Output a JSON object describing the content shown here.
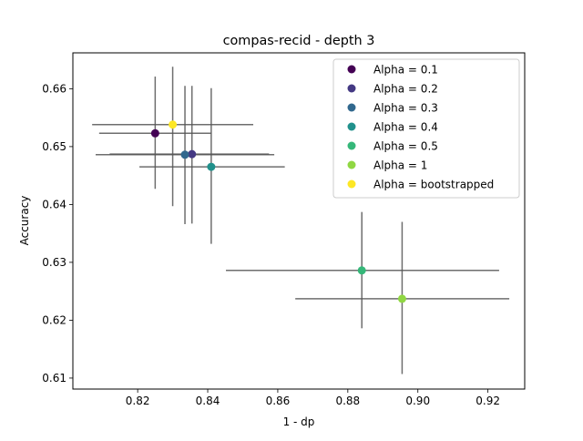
{
  "chart_data": {
    "type": "scatter",
    "title": "compas-recid - depth 3",
    "xlabel": "1 - dp",
    "ylabel": "Accuracy",
    "xlim": [
      0.8015,
      0.9305
    ],
    "ylim": [
      0.6081,
      0.6662
    ],
    "xticks": [
      0.82,
      0.84,
      0.86,
      0.88,
      0.9,
      0.92
    ],
    "xtick_labels": [
      "0.82",
      "0.84",
      "0.86",
      "0.88",
      "0.90",
      "0.92"
    ],
    "yticks": [
      0.61,
      0.62,
      0.63,
      0.64,
      0.65,
      0.66
    ],
    "ytick_labels": [
      "0.61",
      "0.62",
      "0.63",
      "0.64",
      "0.65",
      "0.66"
    ],
    "grid": false,
    "legend_position": "upper right",
    "error_bar_color": "#555555",
    "series": [
      {
        "name": "Alpha = 0.1",
        "color": "#440154",
        "x": 0.825,
        "y": 0.6523,
        "xerr": [
          0.809,
          0.841
        ],
        "yerr": [
          0.6427,
          0.6621
        ]
      },
      {
        "name": "Alpha = 0.2",
        "color": "#443983",
        "x": 0.8355,
        "y": 0.6487,
        "xerr": [
          0.812,
          0.8575
        ],
        "yerr": [
          0.6367,
          0.6605
        ]
      },
      {
        "name": "Alpha = 0.3",
        "color": "#31688e",
        "x": 0.8335,
        "y": 0.6486,
        "xerr": [
          0.808,
          0.859
        ],
        "yerr": [
          0.6366,
          0.6605
        ]
      },
      {
        "name": "Alpha = 0.4",
        "color": "#21918c",
        "x": 0.841,
        "y": 0.6465,
        "xerr": [
          0.8205,
          0.862
        ],
        "yerr": [
          0.6332,
          0.6601
        ]
      },
      {
        "name": "Alpha = 0.5",
        "color": "#35b779",
        "x": 0.884,
        "y": 0.6286,
        "xerr": [
          0.8452,
          0.9232
        ],
        "yerr": [
          0.6186,
          0.6387
        ]
      },
      {
        "name": "Alpha = 1",
        "color": "#90d743",
        "x": 0.8955,
        "y": 0.6237,
        "xerr": [
          0.865,
          0.9261
        ],
        "yerr": [
          0.6107,
          0.637
        ]
      },
      {
        "name": "Alpha = bootstrapped",
        "color": "#fde725",
        "x": 0.83,
        "y": 0.6538,
        "xerr": [
          0.807,
          0.853
        ],
        "yerr": [
          0.6397,
          0.6638
        ]
      }
    ]
  }
}
